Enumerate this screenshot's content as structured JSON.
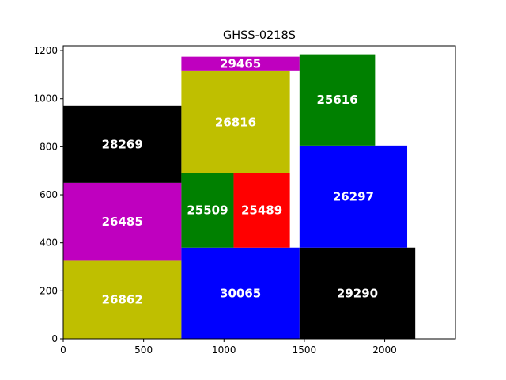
{
  "chart_data": {
    "type": "rect_packing",
    "title": "GHSS-0218S",
    "xlim": [
      0,
      2440
    ],
    "ylim": [
      0,
      1220
    ],
    "x_ticks": [
      0,
      500,
      1000,
      1500,
      2000
    ],
    "y_ticks": [
      0,
      200,
      400,
      600,
      800,
      1000,
      1200
    ],
    "grid": false,
    "colors": {
      "yellow": "#bfbf00",
      "magenta": "#bf00bf",
      "black": "#000000",
      "green": "#008000",
      "red": "#ff0000",
      "blue": "#0000ff"
    },
    "rects": [
      {
        "label": "26862",
        "x": 0,
        "y": 0,
        "w": 735,
        "h": 325,
        "color": "yellow"
      },
      {
        "label": "26485",
        "x": 0,
        "y": 325,
        "w": 735,
        "h": 325,
        "color": "magenta"
      },
      {
        "label": "28269",
        "x": 0,
        "y": 650,
        "w": 735,
        "h": 320,
        "color": "black"
      },
      {
        "label": "30065",
        "x": 735,
        "y": 0,
        "w": 735,
        "h": 380,
        "color": "blue"
      },
      {
        "label": "25509",
        "x": 735,
        "y": 380,
        "w": 325,
        "h": 310,
        "color": "green"
      },
      {
        "label": "25489",
        "x": 1060,
        "y": 380,
        "w": 350,
        "h": 310,
        "color": "red"
      },
      {
        "label": "26816",
        "x": 735,
        "y": 690,
        "w": 675,
        "h": 425,
        "color": "yellow"
      },
      {
        "label": "29465",
        "x": 735,
        "y": 1115,
        "w": 735,
        "h": 60,
        "color": "magenta"
      },
      {
        "label": "29290",
        "x": 1470,
        "y": 0,
        "w": 720,
        "h": 380,
        "color": "black"
      },
      {
        "label": "26297",
        "x": 1470,
        "y": 380,
        "w": 670,
        "h": 425,
        "color": "blue"
      },
      {
        "label": "25616",
        "x": 1470,
        "y": 805,
        "w": 470,
        "h": 380,
        "color": "green"
      }
    ]
  }
}
